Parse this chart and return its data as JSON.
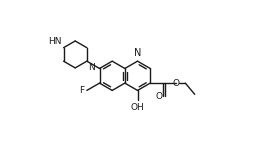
{
  "background": "#ffffff",
  "line_color": "#1a1a1a",
  "line_width": 1.0,
  "font_size": 6.5,
  "xlim": [
    0,
    2.76
  ],
  "ylim": [
    0,
    1.44
  ],
  "figsize": [
    2.76,
    1.44
  ],
  "dpi": 100
}
